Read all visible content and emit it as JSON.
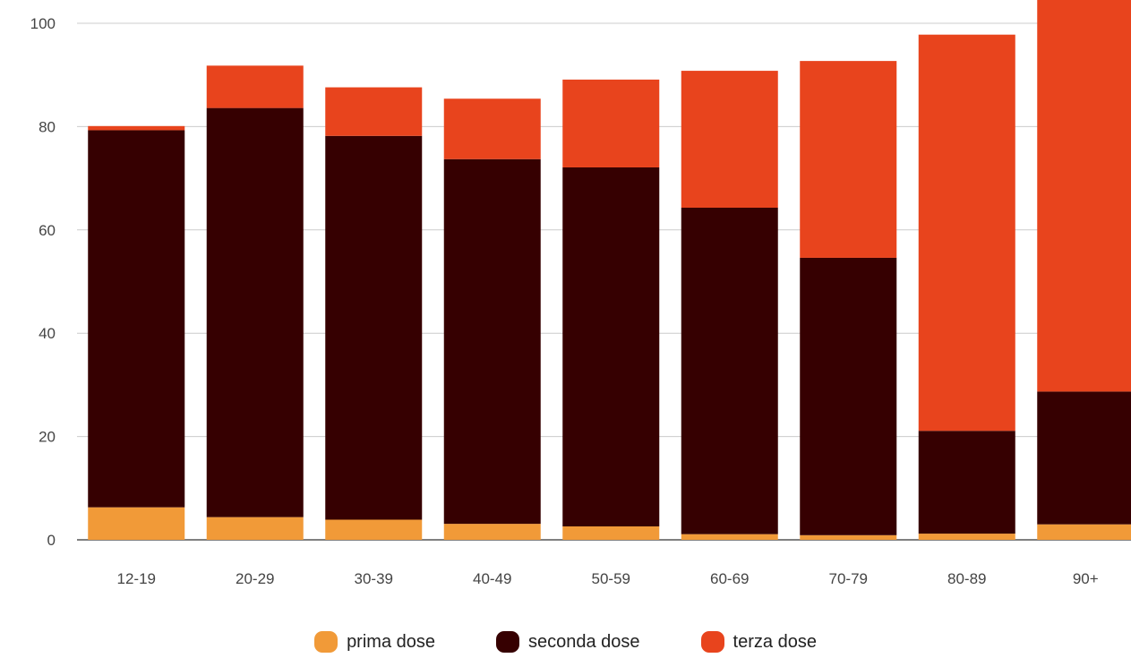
{
  "chart_data": {
    "type": "bar",
    "stacked": true,
    "categories": [
      "12-19",
      "20-29",
      "30-39",
      "40-49",
      "50-59",
      "60-69",
      "70-79",
      "80-89",
      "90+"
    ],
    "series": [
      {
        "name": "prima dose",
        "color": "#f19a38",
        "values": [
          6.3,
          4.4,
          3.9,
          3.1,
          2.6,
          1.1,
          0.9,
          1.2,
          3.0
        ]
      },
      {
        "name": "seconda dose",
        "color": "#360001",
        "values": [
          73.0,
          79.2,
          74.3,
          70.6,
          69.5,
          63.2,
          53.7,
          19.9,
          25.7
        ]
      },
      {
        "name": "terza dose",
        "color": "#e8441d",
        "values": [
          0.8,
          8.2,
          9.4,
          11.7,
          17.0,
          26.5,
          38.1,
          76.7,
          77.3
        ]
      }
    ],
    "yticks": [
      0,
      20,
      40,
      60,
      80,
      100
    ],
    "ylim": [
      0,
      100
    ],
    "grid": true,
    "legend_position": "bottom",
    "title": "",
    "xlabel": "",
    "ylabel": ""
  }
}
